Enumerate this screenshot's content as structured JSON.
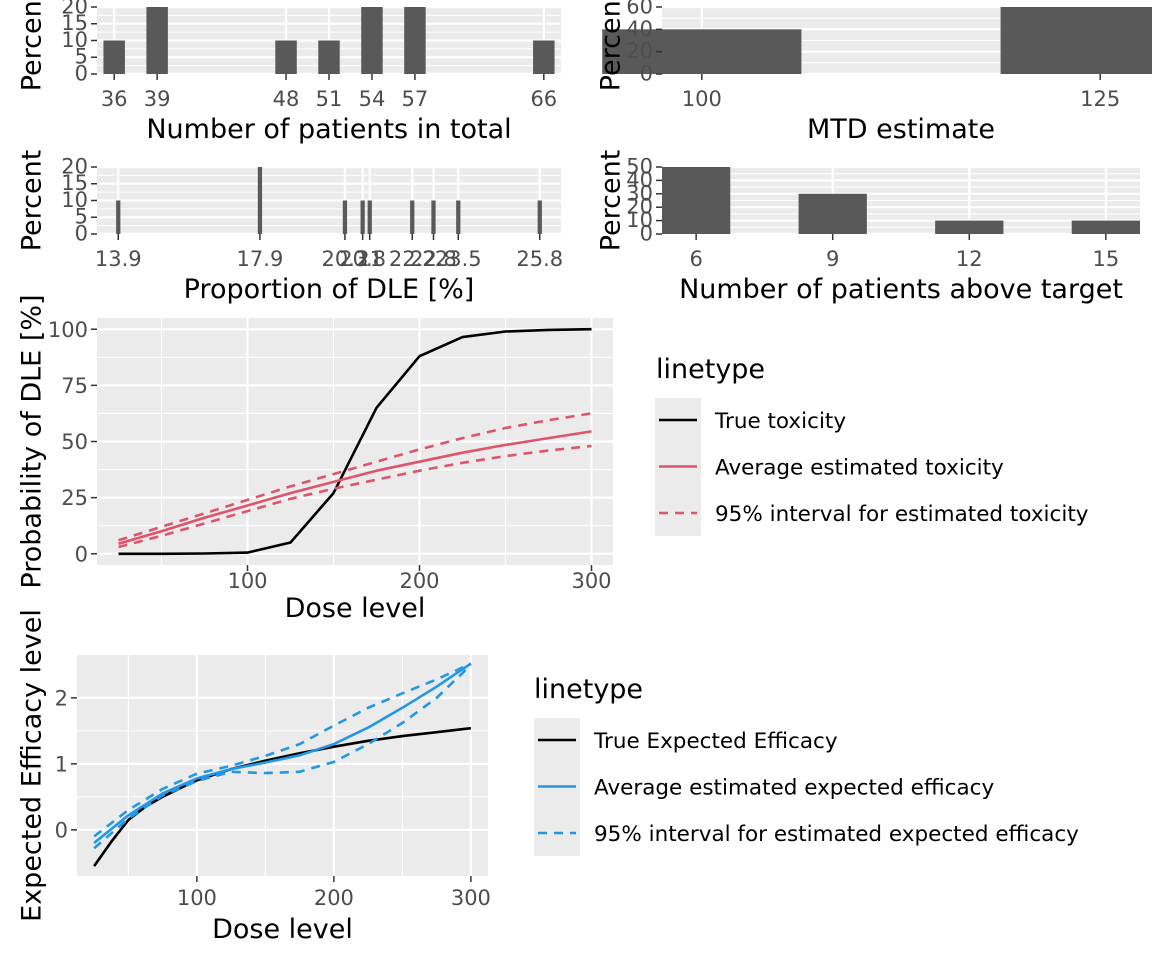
{
  "colors": {
    "panel_bg": "#EBEBEB",
    "grid_major": "#FFFFFF",
    "bar_fill": "#595959",
    "true_line": "#000000",
    "tox_red": "#DF536B",
    "eff_blue": "#2297E6"
  },
  "chart_data": [
    {
      "id": "patients_total",
      "type": "bar",
      "xlabel": "Number of patients in total",
      "ylabel": "Percent",
      "x": [
        36,
        39,
        48,
        51,
        54,
        57,
        66
      ],
      "values": [
        10,
        20,
        10,
        10,
        20,
        20,
        10
      ],
      "xlim": [
        34.8,
        67.2
      ],
      "ylim": [
        0,
        20
      ],
      "x_ticks": [
        36,
        39,
        48,
        51,
        54,
        57,
        66
      ],
      "x_tick_labels": [
        "36",
        "39",
        "48",
        "51",
        "54",
        "57",
        "66"
      ],
      "y_ticks": [
        0,
        5,
        10,
        15,
        20
      ],
      "y_tick_labels": [
        "0",
        "5",
        "10",
        "15",
        "20"
      ],
      "bar_width": 1.5
    },
    {
      "id": "mtd_estimate",
      "type": "bar",
      "xlabel": "MTD estimate",
      "ylabel": "Percent",
      "x": [
        100,
        125
      ],
      "values": [
        40,
        60
      ],
      "xlim": [
        97.5,
        127.5
      ],
      "ylim": [
        0,
        60
      ],
      "x_ticks": [
        100,
        125
      ],
      "x_tick_labels": [
        "100",
        "125"
      ],
      "y_ticks": [
        0,
        20,
        40,
        60
      ],
      "y_tick_labels": [
        "0",
        "20",
        "40",
        "60"
      ],
      "bar_width": 12.5
    },
    {
      "id": "prop_dle",
      "type": "bar",
      "xlabel": "Proportion of DLE [%]",
      "ylabel": "Percent",
      "x": [
        13.9,
        17.9,
        20.3,
        20.8,
        21.0,
        22.2,
        22.8,
        23.5,
        25.8
      ],
      "values": [
        10,
        20,
        10,
        10,
        10,
        10,
        10,
        10,
        10
      ],
      "xlim": [
        13.3,
        26.4
      ],
      "ylim": [
        0,
        20
      ],
      "x_ticks": [
        13.9,
        17.9,
        20.3,
        20.8,
        21.0,
        22.2,
        22.8,
        23.5,
        25.8
      ],
      "x_tick_labels": [
        "13.9",
        "17.9",
        "20.3",
        "20.8",
        "21",
        "22.2",
        "22.8",
        "23.5",
        "25.8"
      ],
      "y_ticks": [
        0,
        5,
        10,
        15,
        20
      ],
      "y_tick_labels": [
        "0",
        "5",
        "10",
        "15",
        "20"
      ],
      "bar_width": 0.12
    },
    {
      "id": "patients_above_target",
      "type": "bar",
      "xlabel": "Number of patients above target",
      "ylabel": "Percent",
      "x": [
        6,
        9,
        12,
        15
      ],
      "values": [
        50,
        30,
        10,
        10
      ],
      "xlim": [
        5.25,
        15.75
      ],
      "ylim": [
        0,
        50
      ],
      "x_ticks": [
        6,
        9,
        12,
        15
      ],
      "x_tick_labels": [
        "6",
        "9",
        "12",
        "15"
      ],
      "y_ticks": [
        0,
        10,
        20,
        30,
        40,
        50
      ],
      "y_tick_labels": [
        "0",
        "10",
        "20",
        "30",
        "40",
        "50"
      ],
      "bar_width": 1.5
    },
    {
      "id": "dle_curve",
      "type": "line",
      "xlabel": "Dose level",
      "ylabel": "Probability of DLE [%]",
      "xlim": [
        12.5,
        312.5
      ],
      "ylim": [
        -5,
        105
      ],
      "x_ticks": [
        100,
        200,
        300
      ],
      "x_tick_labels": [
        "100",
        "200",
        "300"
      ],
      "y_ticks": [
        0,
        25,
        50,
        75,
        100
      ],
      "y_tick_labels": [
        "0",
        "25",
        "50",
        "75",
        "100"
      ],
      "series": [
        {
          "name": "True toxicity",
          "color": "#000000",
          "dash": "solid",
          "x": [
            25,
            50,
            75,
            100,
            125,
            150,
            175,
            200,
            225,
            250,
            275,
            300
          ],
          "y": [
            0,
            0,
            0.1,
            0.5,
            5,
            27,
            65,
            88,
            96.5,
            99,
            99.7,
            100
          ]
        },
        {
          "name": "Average estimated toxicity",
          "color": "#DF536B",
          "dash": "solid",
          "x": [
            25,
            50,
            75,
            100,
            125,
            150,
            175,
            200,
            225,
            250,
            275,
            300
          ],
          "y": [
            4.5,
            10,
            16,
            21.5,
            27,
            32,
            37,
            41,
            45,
            48.5,
            51.5,
            54.5
          ]
        },
        {
          "name": "95% interval for estimated toxicity",
          "color": "#DF536B",
          "dash": "dashed",
          "x": [
            25,
            50,
            75,
            100,
            125,
            150,
            175,
            200,
            225,
            250,
            275,
            300
          ],
          "y": [
            3,
            8,
            13.5,
            19,
            24.5,
            29,
            33,
            37,
            40.5,
            43.5,
            46,
            48
          ]
        },
        {
          "name": "95% interval for estimated toxicity",
          "color": "#DF536B",
          "dash": "dashed",
          "x": [
            25,
            50,
            75,
            100,
            125,
            150,
            175,
            200,
            225,
            250,
            275,
            300
          ],
          "y": [
            6,
            12,
            18,
            24,
            30,
            35.5,
            41,
            46.5,
            51.5,
            56,
            59.5,
            62.5
          ]
        }
      ],
      "legend": {
        "title": "linetype",
        "entries": [
          {
            "label": "True toxicity",
            "color": "#000000",
            "dash": "solid"
          },
          {
            "label": "Average estimated toxicity",
            "color": "#DF536B",
            "dash": "solid"
          },
          {
            "label": "95% interval for estimated toxicity",
            "color": "#DF536B",
            "dash": "dashed"
          }
        ]
      }
    },
    {
      "id": "efficacy_curve",
      "type": "line",
      "xlabel": "Dose level",
      "ylabel": "Expected Efficacy level",
      "xlim": [
        12.5,
        312.5
      ],
      "ylim": [
        -0.7,
        2.65
      ],
      "x_ticks": [
        100,
        200,
        300
      ],
      "x_tick_labels": [
        "100",
        "200",
        "300"
      ],
      "y_ticks": [
        0,
        1,
        2
      ],
      "y_tick_labels": [
        "0",
        "1",
        "2"
      ],
      "series": [
        {
          "name": "True Expected Efficacy",
          "color": "#000000",
          "dash": "solid",
          "x": [
            25,
            37.5,
            50,
            62.5,
            75,
            87.5,
            100,
            125,
            150,
            175,
            200,
            225,
            250,
            275,
            300
          ],
          "y": [
            -0.55,
            -0.18,
            0.15,
            0.35,
            0.5,
            0.63,
            0.75,
            0.92,
            1.05,
            1.16,
            1.26,
            1.35,
            1.42,
            1.48,
            1.54
          ]
        },
        {
          "name": "Average estimated expected efficacy",
          "color": "#2297E6",
          "dash": "solid",
          "x": [
            25,
            50,
            75,
            100,
            125,
            150,
            175,
            200,
            225,
            250,
            275,
            300
          ],
          "y": [
            -0.2,
            0.22,
            0.55,
            0.78,
            0.92,
            1.02,
            1.13,
            1.3,
            1.55,
            1.85,
            2.17,
            2.52
          ]
        },
        {
          "name": "95% interval for estimated expected efficacy",
          "color": "#2297E6",
          "dash": "dashed",
          "x": [
            25,
            50,
            75,
            100,
            125,
            150,
            175,
            200,
            225,
            250,
            275,
            300
          ],
          "y": [
            -0.28,
            0.17,
            0.52,
            0.74,
            0.88,
            0.86,
            0.88,
            1.03,
            1.3,
            1.62,
            2.0,
            2.5
          ]
        },
        {
          "name": "95% interval for estimated expected efficacy",
          "color": "#2297E6",
          "dash": "dashed",
          "x": [
            25,
            50,
            75,
            100,
            125,
            150,
            175,
            200,
            225,
            250,
            275,
            300
          ],
          "y": [
            -0.1,
            0.3,
            0.62,
            0.85,
            0.97,
            1.12,
            1.3,
            1.58,
            1.85,
            2.07,
            2.28,
            2.52
          ]
        }
      ],
      "legend": {
        "title": "linetype",
        "entries": [
          {
            "label": "True Expected Efficacy",
            "color": "#000000",
            "dash": "solid"
          },
          {
            "label": "Average estimated expected efficacy",
            "color": "#2297E6",
            "dash": "solid"
          },
          {
            "label": "95% interval for estimated expected efficacy",
            "color": "#2297E6",
            "dash": "dashed"
          }
        ]
      }
    }
  ]
}
